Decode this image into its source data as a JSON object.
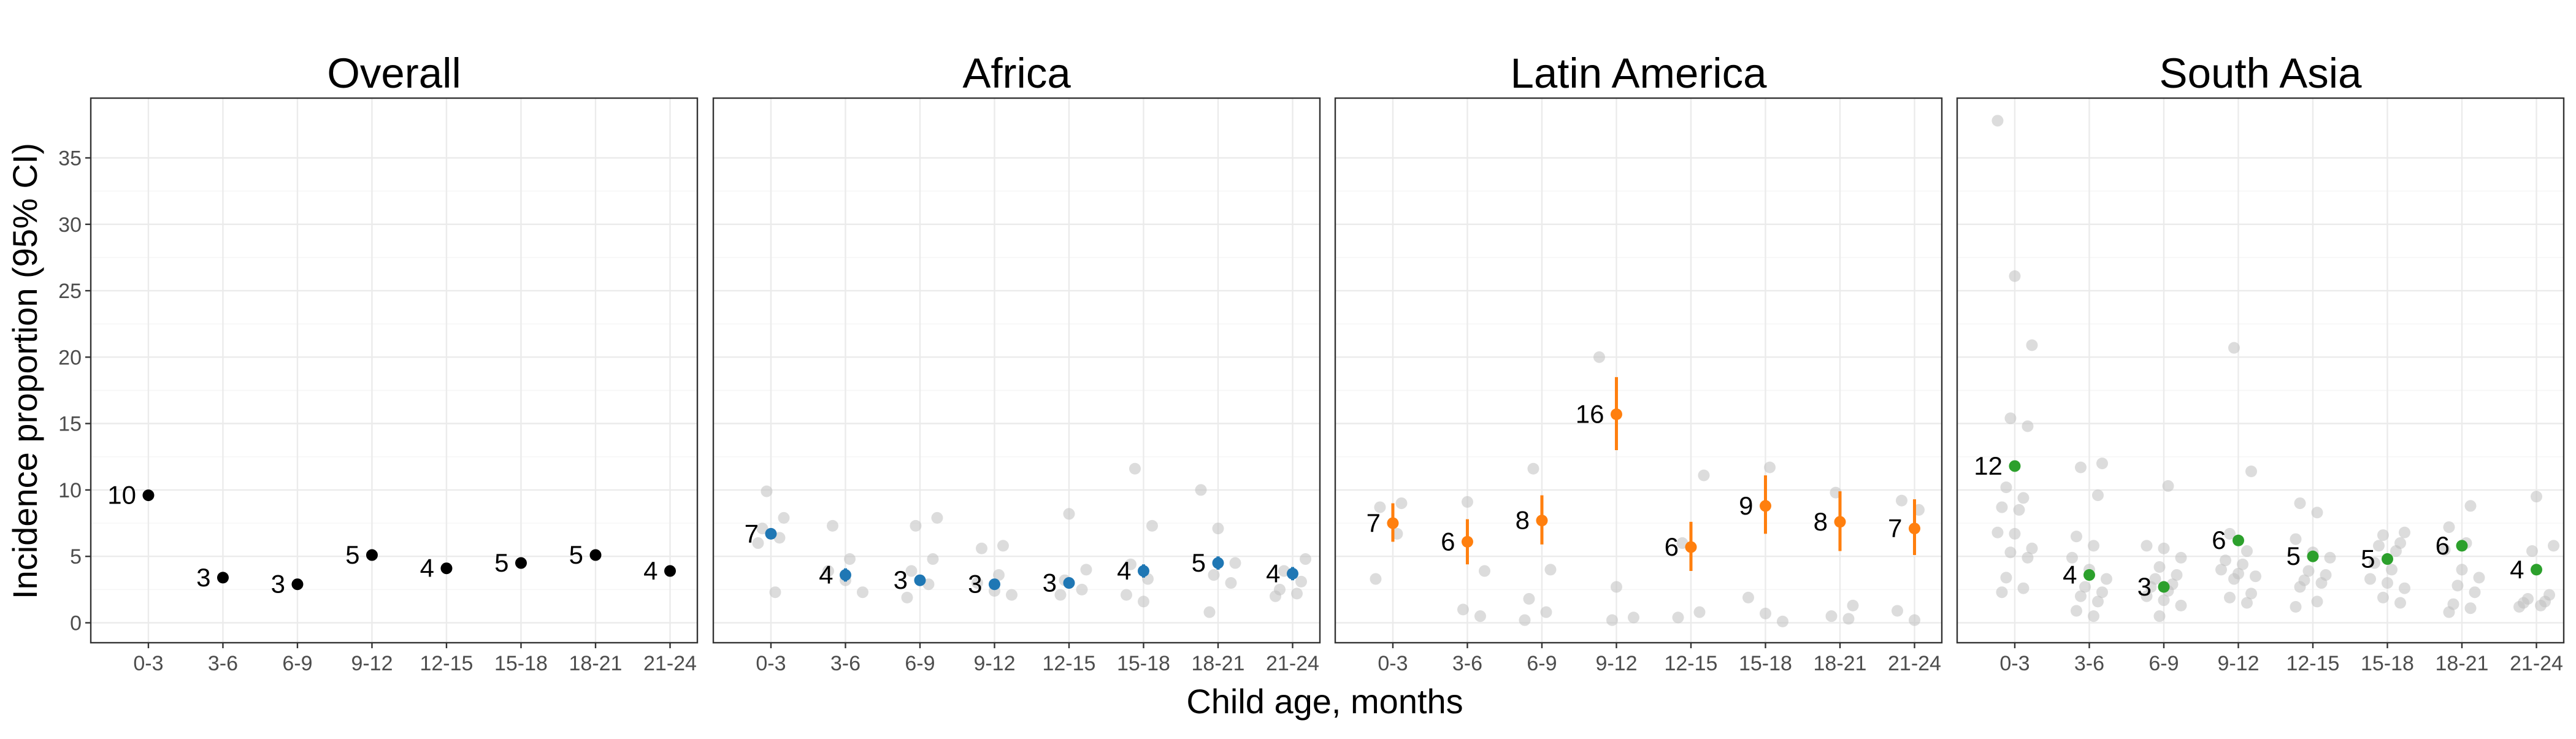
{
  "chart_data": {
    "type": "scatter",
    "xlabel": "Child age, months",
    "ylabel": "Incidence proportion (95% CI)",
    "categories": [
      "0-3",
      "3-6",
      "6-9",
      "9-12",
      "12-15",
      "15-18",
      "18-21",
      "21-24"
    ],
    "ylim": [
      -1.5,
      39.5
    ],
    "yticks": [
      0,
      5,
      10,
      15,
      20,
      25,
      30,
      35
    ],
    "grid": true,
    "legend": "none",
    "panels": [
      {
        "title": "Overall",
        "color": "#000000",
        "estimates": [
          9.6,
          3.4,
          2.9,
          5.1,
          4.1,
          4.5,
          5.1,
          3.9
        ],
        "labels": [
          "10",
          "3",
          "3",
          "5",
          "4",
          "5",
          "5",
          "4"
        ],
        "ci_lower": [
          9.3,
          3.2,
          2.7,
          4.9,
          3.9,
          4.3,
          4.9,
          3.7
        ],
        "ci_upper": [
          9.9,
          3.6,
          3.1,
          5.3,
          4.3,
          4.7,
          5.3,
          4.1
        ],
        "studies": [
          [],
          [],
          [],
          [],
          [],
          [],
          [],
          []
        ]
      },
      {
        "title": "Africa",
        "color": "#1f77b4",
        "estimates": [
          6.7,
          3.6,
          3.2,
          2.9,
          3.0,
          3.9,
          4.5,
          3.7
        ],
        "labels": [
          "7",
          "4",
          "3",
          "3",
          "3",
          "4",
          "5",
          "4"
        ],
        "ci_lower": [
          6.3,
          3.1,
          2.8,
          2.5,
          2.6,
          3.4,
          4.0,
          3.2
        ],
        "ci_upper": [
          7.1,
          4.1,
          3.6,
          3.3,
          3.4,
          4.4,
          5.0,
          4.2
        ],
        "studies": [
          [
            9.9,
            7.9,
            7.1,
            6.4,
            6.0,
            2.3
          ],
          [
            7.3,
            4.8,
            3.9,
            3.2,
            2.3
          ],
          [
            7.9,
            7.3,
            4.8,
            3.9,
            2.9,
            1.9
          ],
          [
            5.8,
            5.6,
            3.6,
            3.0,
            2.4,
            2.1
          ],
          [
            8.2,
            4.0,
            3.2,
            2.5,
            2.1
          ],
          [
            11.6,
            7.3,
            4.4,
            3.3,
            2.1,
            1.6
          ],
          [
            10.0,
            7.1,
            4.5,
            3.6,
            3.0,
            0.8
          ],
          [
            4.8,
            3.9,
            3.1,
            2.5,
            2.2,
            2.0
          ]
        ]
      },
      {
        "title": "Latin America",
        "color": "#ff7f0e",
        "estimates": [
          7.5,
          6.1,
          7.7,
          15.7,
          5.7,
          8.8,
          7.6,
          7.1
        ],
        "labels": [
          "7",
          "6",
          "8",
          "16",
          "6",
          "9",
          "8",
          "7"
        ],
        "ci_lower": [
          6.1,
          4.4,
          5.9,
          13.0,
          3.9,
          6.7,
          5.4,
          5.1
        ],
        "ci_upper": [
          9.0,
          7.8,
          9.6,
          18.5,
          7.6,
          11.1,
          9.9,
          9.3
        ],
        "studies": [
          [
            9.0,
            8.7,
            6.7,
            3.3
          ],
          [
            9.1,
            3.9,
            1.0,
            0.5
          ],
          [
            11.6,
            4.0,
            1.8,
            0.8,
            0.2
          ],
          [
            20.0,
            2.7,
            0.4,
            0.2
          ],
          [
            11.1,
            6.0,
            0.8,
            0.4
          ],
          [
            11.7,
            1.9,
            0.7,
            0.1
          ],
          [
            9.8,
            1.3,
            0.5,
            0.3
          ],
          [
            9.2,
            8.5,
            0.9,
            0.2
          ]
        ]
      },
      {
        "title": "South Asia",
        "color": "#2ca02c",
        "estimates": [
          11.8,
          3.6,
          2.7,
          6.2,
          5.0,
          4.8,
          5.8,
          4.0
        ],
        "labels": [
          "12",
          "4",
          "3",
          "6",
          "5",
          "5",
          "6",
          "4"
        ],
        "ci_lower": [
          11.5,
          3.3,
          2.4,
          5.9,
          4.7,
          4.5,
          5.5,
          3.7
        ],
        "ci_upper": [
          12.1,
          3.9,
          3.0,
          6.5,
          5.3,
          5.1,
          6.1,
          4.3
        ],
        "studies": [
          [
            37.8,
            26.1,
            20.9,
            15.4,
            14.8,
            10.2,
            9.4,
            8.7,
            8.5,
            6.8,
            6.7,
            5.6,
            5.3,
            4.9,
            3.4,
            2.6,
            2.3
          ],
          [
            12.0,
            11.7,
            9.6,
            6.5,
            5.8,
            4.9,
            4.0,
            3.3,
            2.7,
            2.3,
            2.0,
            1.6,
            0.9,
            0.5
          ],
          [
            10.3,
            5.8,
            5.6,
            4.9,
            4.2,
            3.6,
            3.3,
            2.9,
            2.7,
            2.4,
            2.0,
            1.7,
            1.3,
            0.5
          ],
          [
            20.7,
            11.4,
            6.7,
            5.4,
            4.7,
            4.4,
            4.0,
            3.7,
            3.5,
            3.3,
            2.2,
            1.9,
            1.5
          ],
          [
            9.0,
            8.3,
            6.3,
            5.3,
            4.9,
            3.9,
            3.6,
            3.2,
            3.0,
            2.7,
            1.6,
            1.2
          ],
          [
            6.8,
            6.6,
            6.0,
            5.8,
            5.4,
            4.5,
            4.0,
            3.3,
            3.0,
            2.6,
            1.9,
            1.5
          ],
          [
            8.8,
            7.2,
            6.0,
            5.5,
            4.0,
            3.4,
            2.8,
            2.3,
            1.4,
            1.1,
            0.8
          ],
          [
            9.5,
            5.8,
            5.4,
            2.1,
            1.8,
            1.6,
            1.5,
            1.3,
            1.2
          ]
        ]
      }
    ]
  },
  "colors": {
    "panel_background": "#ffffff",
    "grid": "#ebebeb",
    "border": "#333333",
    "tick_text": "#4d4d4d",
    "study_points": "#bfbfbf"
  }
}
